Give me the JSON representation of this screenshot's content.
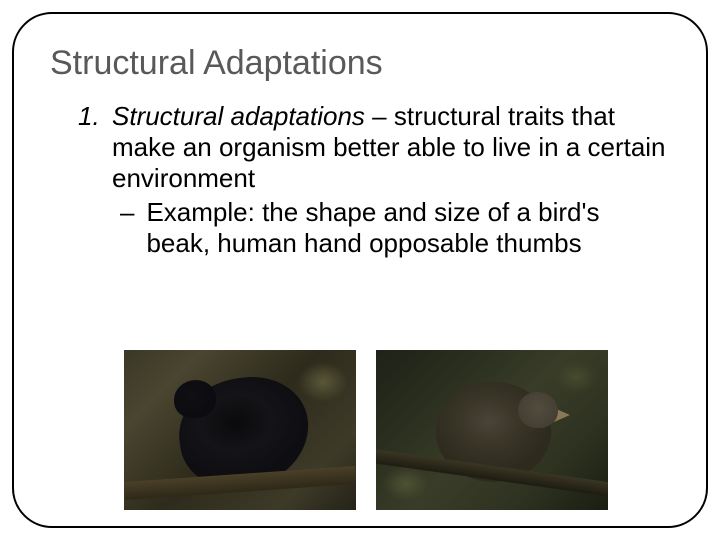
{
  "title": "Structural Adaptations",
  "list": {
    "number": "1.",
    "term": "Structural adaptations",
    "definition": " – structural traits that make an organism better able to live in a certain environment",
    "sub": {
      "dash": "–",
      "text": "Example:  the shape and size of a bird's beak, human hand opposable thumbs"
    }
  },
  "colors": {
    "title_color": "#595959",
    "text_color": "#000000",
    "frame_border": "#000000",
    "background": "#ffffff"
  },
  "images": {
    "bird1_alt": "black-finch-photo",
    "bird2_alt": "brown-finch-photo"
  }
}
